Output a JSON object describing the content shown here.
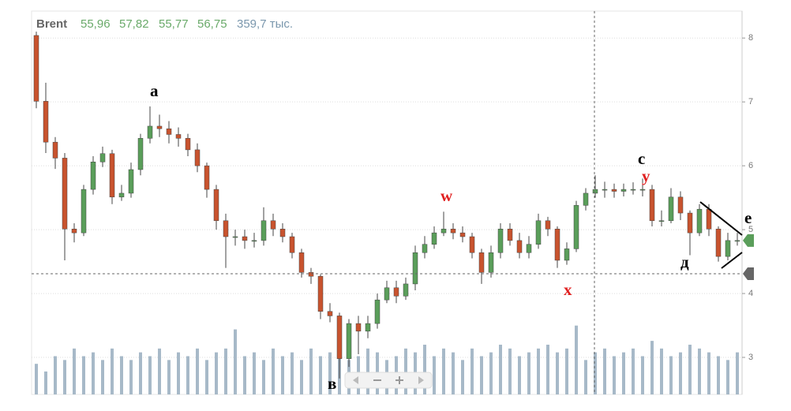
{
  "chart_data": {
    "type": "candlestick",
    "legend": {
      "name": "Brent",
      "open": {
        "value": 55.96,
        "label": "55,96"
      },
      "high": {
        "value": 57.82,
        "label": "57,82"
      },
      "low": {
        "value": 55.77,
        "label": "55,77"
      },
      "close": {
        "value": 56.75,
        "label": "56,75"
      },
      "volume": {
        "value": 359700,
        "label": "359,7 тыс."
      }
    },
    "annotations": [
      "а",
      "в",
      "w",
      "x",
      "c",
      "y",
      "д",
      "е"
    ],
    "ylim": [
      2.42,
      8.41
    ],
    "yticks": [
      8,
      7,
      6,
      5,
      4,
      3
    ],
    "grid": true,
    "y2lim": [
      0,
      100
    ],
    "up_color": "#5a9e5a",
    "down_color": "#c8532e",
    "volume_color": "#a7b9c8",
    "series": [
      {
        "name": "Brent",
        "open": [
          8.04,
          7.01,
          6.37,
          6.12,
          5.01,
          4.95,
          5.63,
          6.06,
          6.19,
          5.51,
          5.57,
          5.94,
          6.43,
          6.62,
          6.58,
          6.49,
          6.43,
          6.25,
          6.0,
          5.63,
          5.14,
          4.89,
          4.89,
          4.83,
          4.83,
          5.14,
          5.01,
          4.89,
          4.64,
          4.33,
          4.27,
          3.72,
          3.65,
          2.98,
          3.53,
          3.41,
          3.53,
          3.9,
          4.09,
          3.96,
          4.15,
          4.64,
          4.77,
          4.95,
          5.01,
          4.95,
          4.89,
          4.64,
          4.33,
          4.64,
          5.01,
          4.83,
          4.64,
          4.77,
          5.14,
          5.01,
          4.52,
          4.7,
          5.38,
          5.57,
          5.63,
          5.63,
          5.6,
          5.63,
          5.63,
          5.63,
          5.14,
          5.14,
          5.51,
          5.26,
          4.95,
          5.32,
          5.01,
          4.58,
          4.83
        ],
        "high": [
          8.1,
          7.3,
          6.45,
          6.2,
          5.1,
          5.7,
          6.15,
          6.3,
          6.25,
          5.7,
          6.05,
          6.5,
          6.93,
          6.8,
          6.7,
          6.6,
          6.5,
          6.35,
          6.05,
          5.7,
          5.25,
          5.0,
          5.0,
          4.95,
          5.35,
          5.25,
          5.1,
          4.95,
          4.7,
          4.4,
          4.3,
          3.85,
          3.7,
          3.6,
          3.65,
          3.65,
          4.0,
          4.2,
          4.2,
          4.25,
          4.75,
          4.9,
          5.05,
          5.28,
          5.1,
          5.05,
          4.95,
          4.7,
          4.75,
          5.1,
          5.1,
          4.95,
          4.9,
          5.25,
          5.2,
          5.05,
          4.8,
          5.45,
          5.65,
          5.85,
          5.75,
          5.72,
          5.72,
          5.74,
          5.8,
          5.7,
          5.3,
          5.65,
          5.6,
          5.3,
          5.4,
          5.4,
          5.05,
          4.95,
          4.95
        ],
        "low": [
          6.9,
          6.2,
          5.95,
          4.52,
          4.8,
          4.9,
          5.55,
          5.98,
          5.4,
          5.45,
          5.5,
          5.85,
          6.35,
          6.45,
          6.35,
          6.3,
          6.15,
          5.9,
          5.5,
          5.0,
          4.4,
          4.75,
          4.7,
          4.72,
          4.75,
          4.9,
          4.8,
          4.55,
          4.25,
          4.15,
          3.6,
          3.55,
          2.67,
          2.85,
          3.05,
          3.3,
          3.45,
          3.85,
          3.85,
          3.9,
          4.05,
          4.55,
          4.7,
          4.9,
          4.85,
          4.8,
          4.55,
          4.15,
          4.25,
          4.55,
          4.75,
          4.55,
          4.55,
          4.7,
          4.9,
          4.4,
          4.45,
          4.65,
          5.3,
          5.5,
          5.5,
          5.5,
          5.52,
          5.55,
          5.52,
          5.05,
          5.05,
          5.1,
          5.15,
          4.6,
          4.9,
          4.9,
          4.5,
          4.52,
          4.75
        ],
        "close": [
          7.01,
          6.37,
          6.12,
          5.01,
          4.95,
          5.63,
          6.06,
          6.19,
          5.51,
          5.57,
          5.94,
          6.43,
          6.62,
          6.58,
          6.49,
          6.43,
          6.25,
          6.0,
          5.63,
          5.14,
          4.89,
          4.89,
          4.83,
          4.83,
          5.14,
          5.01,
          4.89,
          4.64,
          4.33,
          4.27,
          3.72,
          3.65,
          2.98,
          3.53,
          3.41,
          3.53,
          3.9,
          4.09,
          3.96,
          4.15,
          4.64,
          4.77,
          4.95,
          5.01,
          4.95,
          4.89,
          4.64,
          4.33,
          4.64,
          5.01,
          4.83,
          4.64,
          4.77,
          5.14,
          5.01,
          4.52,
          4.7,
          5.38,
          5.57,
          5.63,
          5.63,
          5.6,
          5.63,
          5.63,
          5.63,
          5.14,
          5.14,
          5.51,
          5.26,
          4.95,
          5.32,
          5.01,
          4.58,
          4.83,
          4.83
        ],
        "volume": [
          8,
          6,
          10,
          9,
          12,
          10,
          11,
          9,
          12,
          10,
          9,
          11,
          10,
          12,
          9,
          11,
          10,
          12,
          9,
          11,
          12,
          17,
          10,
          11,
          9,
          12,
          10,
          11,
          9,
          12,
          10,
          11,
          13,
          9,
          10,
          12,
          11,
          9,
          10,
          12,
          11,
          13,
          10,
          12,
          11,
          9,
          12,
          10,
          11,
          13,
          12,
          10,
          11,
          12,
          13,
          11,
          12,
          18,
          9,
          11,
          12,
          10,
          11,
          12,
          10,
          14,
          12,
          10,
          11,
          13,
          12,
          11,
          10,
          9,
          11
        ]
      }
    ]
  }
}
